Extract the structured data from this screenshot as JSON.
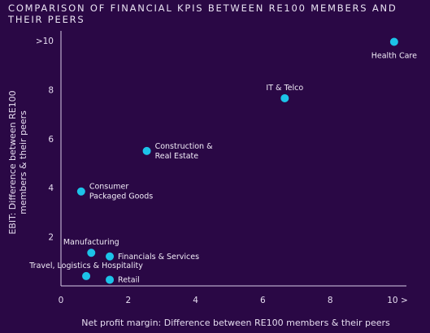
{
  "chart_data": {
    "type": "scatter",
    "title": "COMPARISON OF FINANCIAL KPIS BETWEEN RE100 MEMBERS AND THEIR PEERS",
    "xlabel": "Net profit margin: Difference between RE100 members & their peers",
    "ylabel_lines": [
      "EBIT: Difference between RE100",
      "members & their peers"
    ],
    "xlim": [
      0,
      10
    ],
    "ylim": [
      0,
      10
    ],
    "x_ticks": [
      {
        "value": 0,
        "label": "0"
      },
      {
        "value": 2,
        "label": "2"
      },
      {
        "value": 4,
        "label": "4"
      },
      {
        "value": 6,
        "label": "6"
      },
      {
        "value": 8,
        "label": "8"
      },
      {
        "value": 10,
        "label": "10 >"
      }
    ],
    "y_ticks": [
      {
        "value": 2,
        "label": "2"
      },
      {
        "value": 4,
        "label": "4"
      },
      {
        "value": 6,
        "label": "6"
      },
      {
        "value": 8,
        "label": "8"
      },
      {
        "value": 10,
        "label": ">10"
      }
    ],
    "points": [
      {
        "x": 9.9,
        "y": 9.95,
        "label": [
          "Health Care"
        ],
        "label_pos": "below"
      },
      {
        "x": 6.65,
        "y": 7.65,
        "label": [
          "IT & Telco"
        ],
        "label_pos": "above"
      },
      {
        "x": 2.55,
        "y": 5.5,
        "label": [
          "Construction &",
          "Real Estate"
        ],
        "label_pos": "right"
      },
      {
        "x": 0.6,
        "y": 3.85,
        "label": [
          "Consumer",
          "Packaged Goods"
        ],
        "label_pos": "right"
      },
      {
        "x": 0.9,
        "y": 1.35,
        "label": [
          "Manufacturing"
        ],
        "label_pos": "above"
      },
      {
        "x": 1.45,
        "y": 1.2,
        "label": [
          "Financials & Services"
        ],
        "label_pos": "right"
      },
      {
        "x": 0.75,
        "y": 0.4,
        "label": [
          "Travel, Logistics & Hospitality"
        ],
        "label_pos": "above"
      },
      {
        "x": 1.45,
        "y": 0.25,
        "label": [
          "Retail"
        ],
        "label_pos": "right"
      }
    ],
    "colors": {
      "background": "#2a0845",
      "point": "#1cc3e8",
      "axis": "#d8cde6",
      "text": "#e6ddf0"
    }
  }
}
